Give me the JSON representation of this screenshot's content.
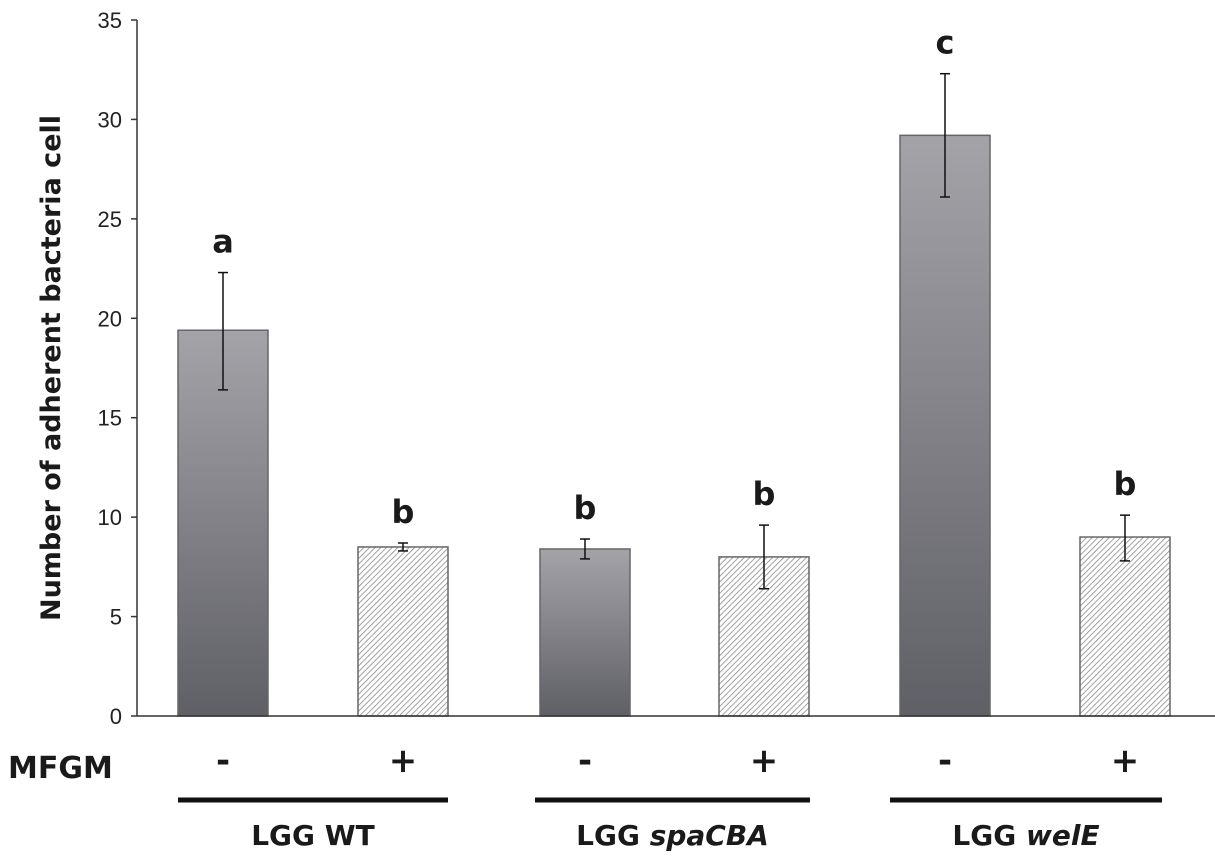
{
  "chart_data": {
    "type": "bar",
    "title": "",
    "ylabel": "Number of adherent bacteria cell",
    "ylim": [
      0,
      35
    ],
    "yticks": [
      0,
      5,
      10,
      15,
      20,
      25,
      30,
      35
    ],
    "grid": false,
    "row_label": "MFGM",
    "bars": [
      {
        "group": "LGG WT",
        "mfgm": "-",
        "value": 19.4,
        "error_low": 16.4,
        "error_high": 22.3,
        "significance": "a",
        "fill": "gradient"
      },
      {
        "group": "LGG WT",
        "mfgm": "+",
        "value": 8.5,
        "error_low": 8.3,
        "error_high": 8.7,
        "significance": "b",
        "fill": "hatched"
      },
      {
        "group": "LGG spaCBA",
        "mfgm": "-",
        "value": 8.4,
        "error_low": 7.9,
        "error_high": 8.9,
        "significance": "b",
        "fill": "gradient"
      },
      {
        "group": "LGG spaCBA",
        "mfgm": "+",
        "value": 8.0,
        "error_low": 6.4,
        "error_high": 9.6,
        "significance": "b",
        "fill": "hatched"
      },
      {
        "group": "LGG welE",
        "mfgm": "-",
        "value": 29.2,
        "error_low": 26.1,
        "error_high": 32.3,
        "significance": "c",
        "fill": "gradient"
      },
      {
        "group": "LGG welE",
        "mfgm": "+",
        "value": 9.0,
        "error_low": 7.8,
        "error_high": 10.1,
        "significance": "b",
        "fill": "hatched"
      }
    ],
    "groups": [
      {
        "prefix": "LGG",
        "name": "WT",
        "italic": false
      },
      {
        "prefix": "LGG",
        "name": "spaCBA",
        "italic": true
      },
      {
        "prefix": "LGG",
        "name": "welE",
        "italic": true
      }
    ],
    "colors": {
      "bar_dark": "#5f5f66",
      "bar_light": "#a3a3a8",
      "hatch": "#8a8a8a",
      "axis": "#333333",
      "text": "#1a1a1a"
    }
  }
}
